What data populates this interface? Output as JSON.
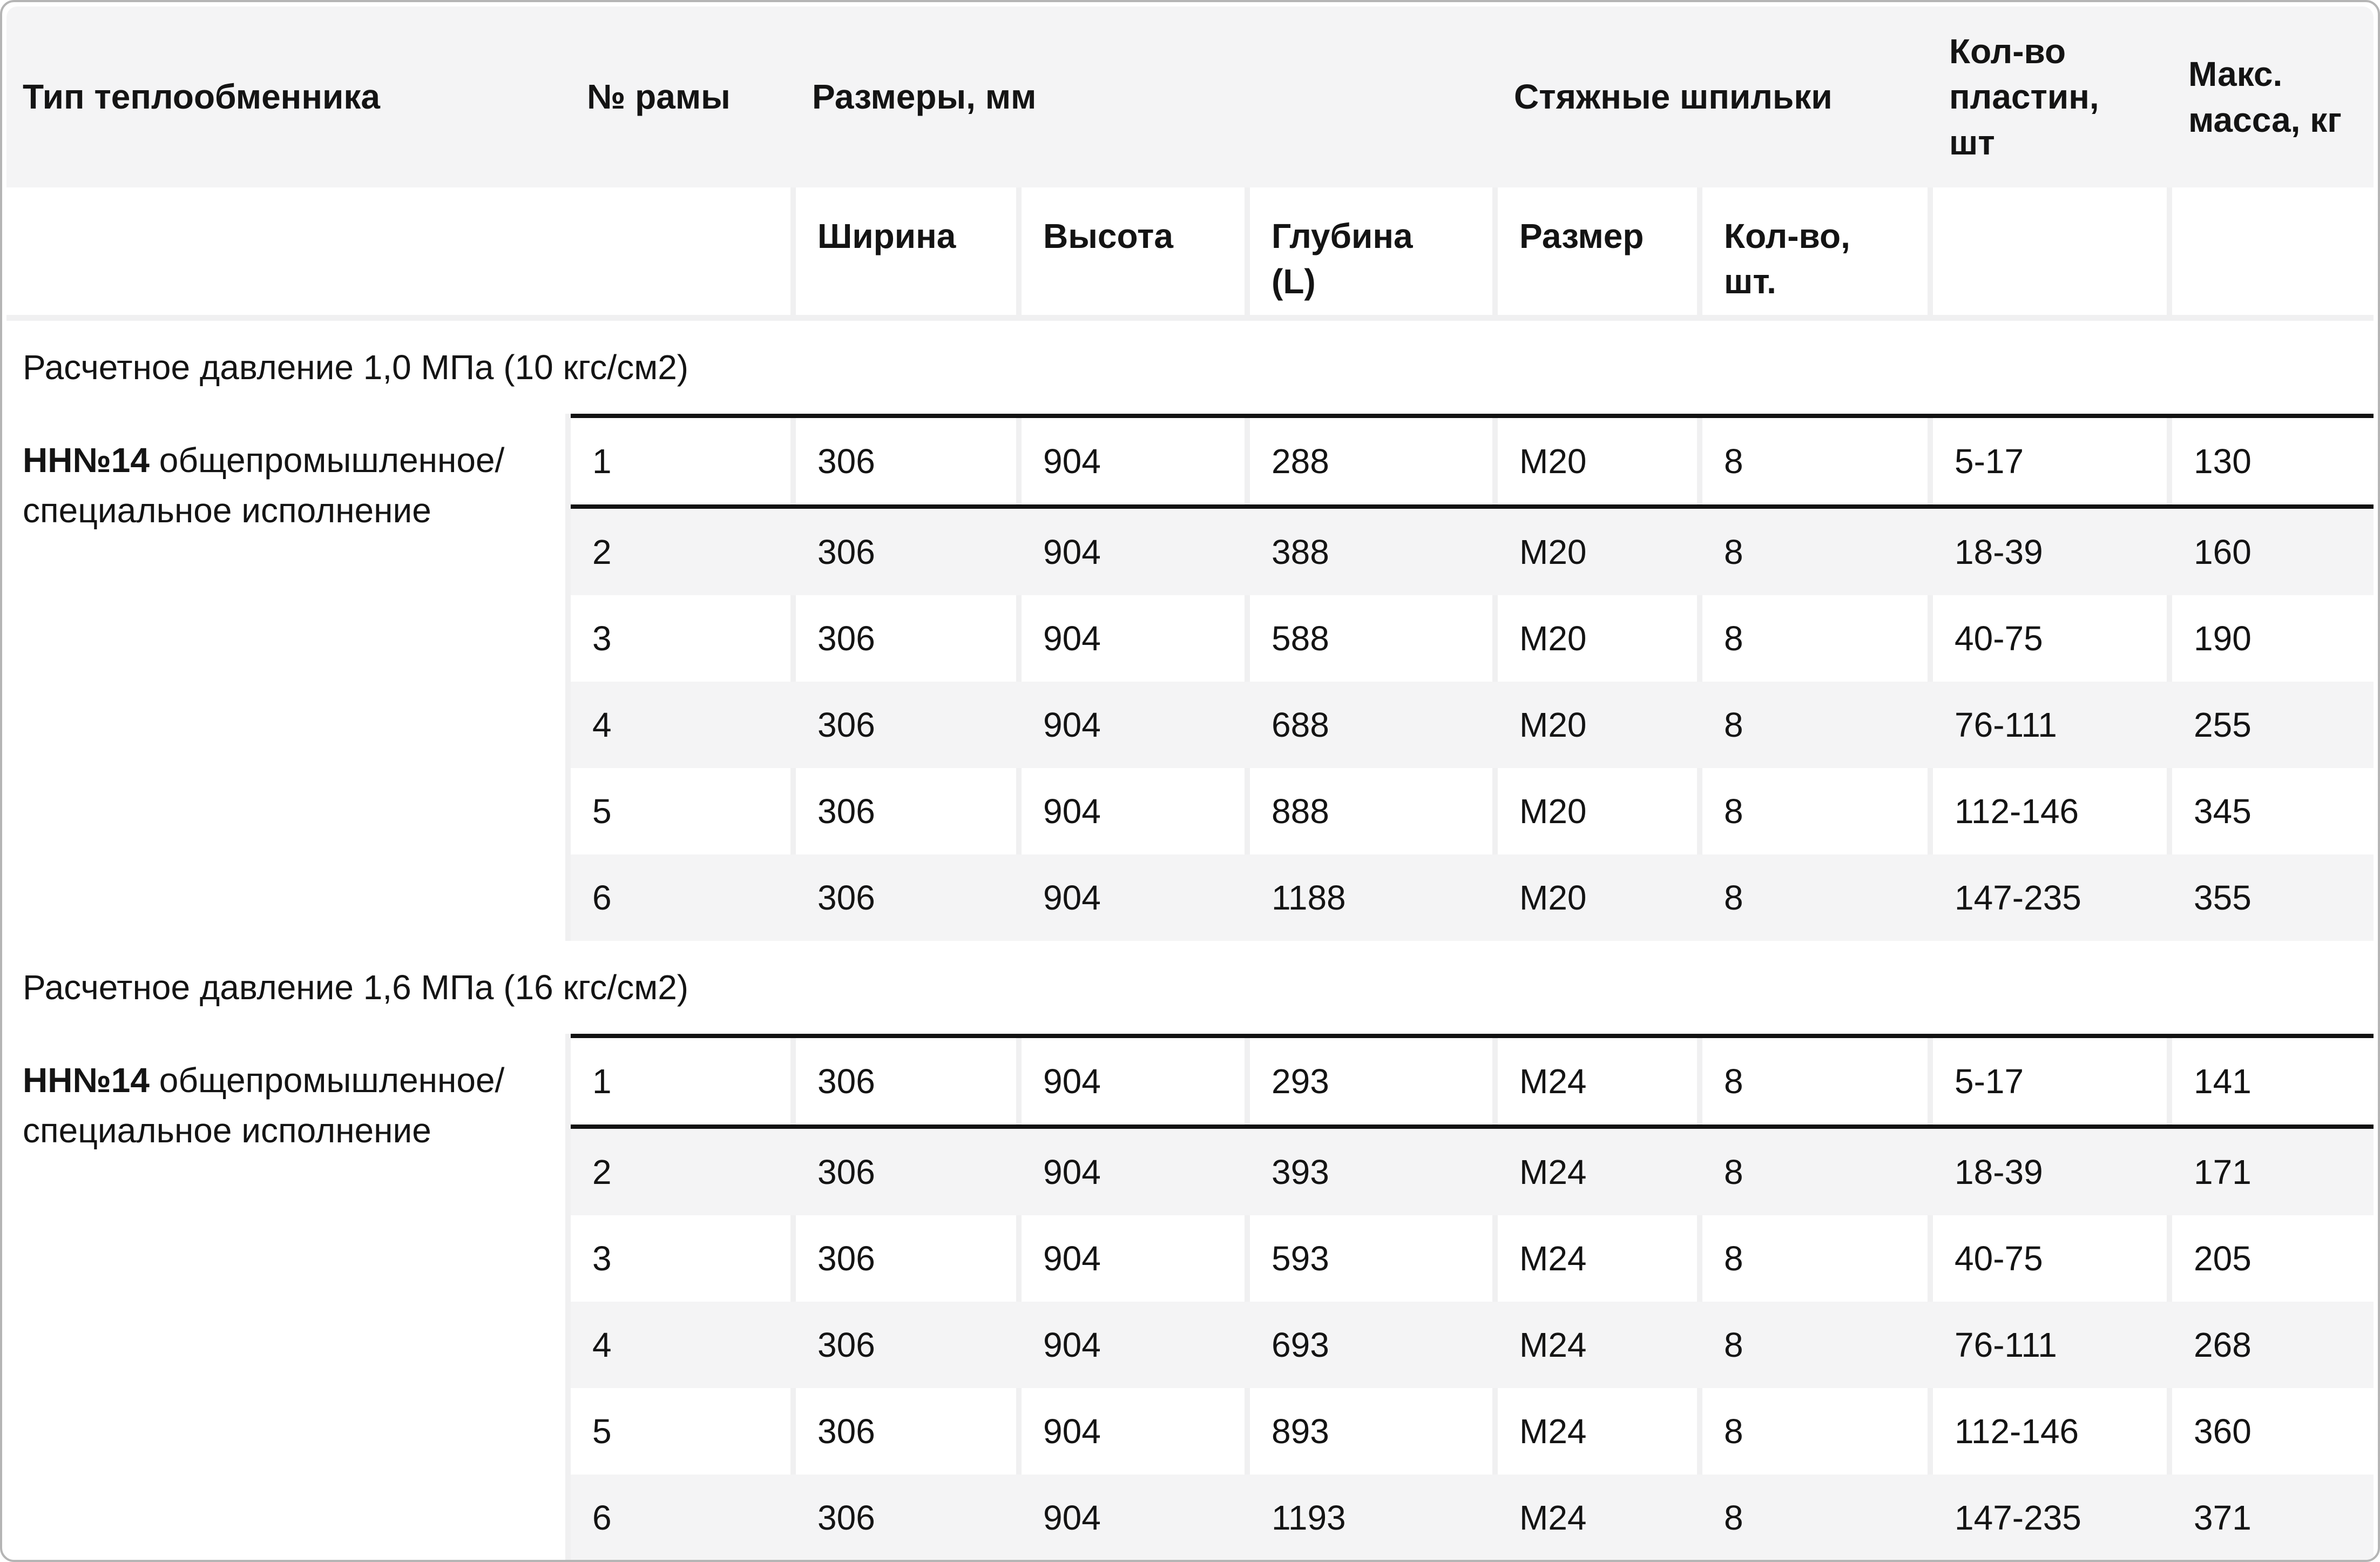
{
  "table": {
    "group_headers": [
      {
        "label": "Тип теплообменника"
      },
      {
        "label": "№ рамы"
      },
      {
        "label": "Размеры, мм"
      },
      {
        "label": "Стяжные шпильки"
      },
      {
        "label": [
          "Кол-во",
          "пластин,",
          "шт"
        ]
      },
      {
        "label": [
          "Макс.",
          "масса, кг"
        ]
      }
    ],
    "sub_headers": {
      "width": "Ширина",
      "height": "Высота",
      "depth": [
        "Глубина",
        "(L)"
      ],
      "stud_size": "Размер",
      "stud_qty": [
        "Кол-во,",
        "шт."
      ]
    },
    "sections": [
      {
        "title": "Расчетное давление 1,0 МПа (10 кгс/см2)",
        "type_bold": "НН№14",
        "type_rest": " общепромышленное/\nспециальное исполнение",
        "rows": [
          [
            "1",
            "306",
            "904",
            "288",
            "М20",
            "8",
            "5-17",
            "130"
          ],
          [
            "2",
            "306",
            "904",
            "388",
            "М20",
            "8",
            "18-39",
            "160"
          ],
          [
            "3",
            "306",
            "904",
            "588",
            "М20",
            "8",
            "40-75",
            "190"
          ],
          [
            "4",
            "306",
            "904",
            "688",
            "М20",
            "8",
            "76-111",
            "255"
          ],
          [
            "5",
            "306",
            "904",
            "888",
            "М20",
            "8",
            "112-146",
            "345"
          ],
          [
            "6",
            "306",
            "904",
            "1188",
            "М20",
            "8",
            "147-235",
            "355"
          ]
        ]
      },
      {
        "title": "Расчетное давление 1,6 МПа (16 кгс/см2)",
        "type_bold": "НН№14",
        "type_rest": " общепромышленное/\nспециальное исполнение",
        "rows": [
          [
            "1",
            "306",
            "904",
            "293",
            "М24",
            "8",
            "5-17",
            "141"
          ],
          [
            "2",
            "306",
            "904",
            "393",
            "М24",
            "8",
            "18-39",
            "171"
          ],
          [
            "3",
            "306",
            "904",
            "593",
            "М24",
            "8",
            "40-75",
            "205"
          ],
          [
            "4",
            "306",
            "904",
            "693",
            "М24",
            "8",
            "76-111",
            "268"
          ],
          [
            "5",
            "306",
            "904",
            "893",
            "М24",
            "8",
            "112-146",
            "360"
          ],
          [
            "6",
            "306",
            "904",
            "1193",
            "М24",
            "8",
            "147-235",
            "371"
          ]
        ]
      }
    ],
    "colors": {
      "header_bg": "#f4f4f5",
      "row_stripe": "#f4f4f5",
      "cell_gap": "#f0f0f1",
      "divider": "#121212",
      "border": "#b5b5b5"
    }
  }
}
